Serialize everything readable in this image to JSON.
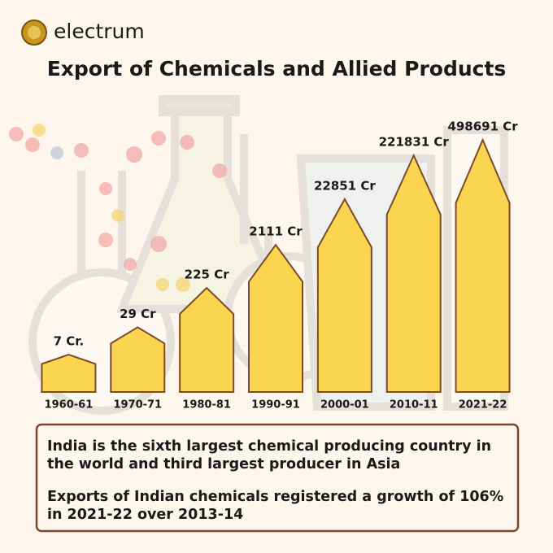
{
  "brand": "electrum",
  "chart_data": {
    "type": "bar",
    "title": "Export of Chemicals and Allied Products",
    "categories": [
      "1960-61",
      "1970-71",
      "1980-81",
      "1990-91",
      "2000-01",
      "2010-11",
      "2021-22"
    ],
    "values": [
      7,
      29,
      225,
      2111,
      22851,
      221831,
      498691
    ],
    "value_labels": [
      "7 Cr.",
      "29 Cr",
      "225 Cr",
      "2111 Cr",
      "22851 Cr",
      "221831 Cr",
      "498691 Cr"
    ],
    "color": "#fbd550",
    "log_scale": true
  },
  "notes": [
    "India is the sixth largest chemical producing country in the world and third largest producer in Asia",
    "Exports of Indian chemicals registered a growth of 106% in 2021-22 over 2013-14"
  ]
}
